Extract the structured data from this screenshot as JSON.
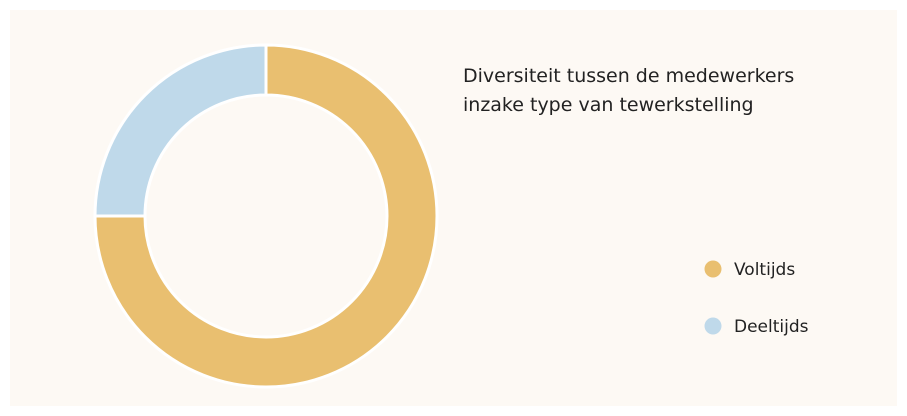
{
  "chart_data": {
    "type": "donut",
    "title": "Diversiteit tussen de medewerkers inzake type van tewerkstelling",
    "categories": [
      "Voltijds",
      "Deeltijds"
    ],
    "values": [
      75,
      25
    ],
    "colors": [
      "#e9bf70",
      "#bfd9ea"
    ],
    "legend": "right"
  }
}
